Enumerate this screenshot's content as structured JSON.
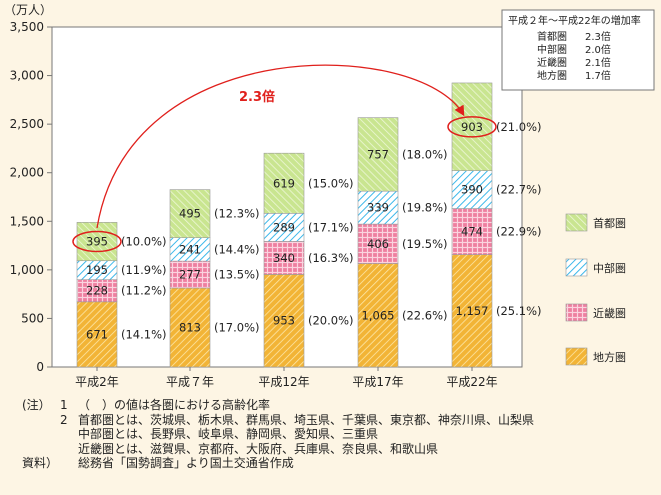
{
  "chart_data": {
    "type": "stacked-bar",
    "unit_label": "（万人）",
    "categories": [
      "平成2年",
      "平成７年",
      "平成12年",
      "平成17年",
      "平成22年"
    ],
    "ylim": [
      0,
      3500
    ],
    "y_ticks": [
      0,
      500,
      1000,
      1500,
      2000,
      2500,
      3000,
      3500
    ],
    "y_tick_labels": [
      "0",
      "500",
      "1,000",
      "1,500",
      "2,000",
      "2,500",
      "3,000",
      "3,500"
    ],
    "series": [
      {
        "name": "地方圏",
        "color": "#f2b436",
        "values": [
          671,
          813,
          953,
          1065,
          1157
        ],
        "labels": [
          "671",
          "813",
          "953",
          "1,065",
          "1,157"
        ],
        "pct": [
          "(14.1%)",
          "(17.0%)",
          "(20.0%)",
          "(22.6%)",
          "(25.1%)"
        ]
      },
      {
        "name": "近畿圏",
        "color": "#ee7fa0",
        "values": [
          228,
          277,
          340,
          406,
          474
        ],
        "labels": [
          "228",
          "277",
          "340",
          "406",
          "474"
        ],
        "pct": [
          "(11.2%)",
          "(13.5%)",
          "(16.3%)",
          "(19.5%)",
          "(22.9%)"
        ]
      },
      {
        "name": "中部圏",
        "color": "#6ccdf0",
        "values": [
          195,
          241,
          289,
          339,
          390
        ],
        "labels": [
          "195",
          "241",
          "289",
          "339",
          "390"
        ],
        "pct": [
          "(11.9%)",
          "(14.4%)",
          "(17.1%)",
          "(19.8%)",
          "(22.7%)"
        ]
      },
      {
        "name": "首都圏",
        "color": "#b8dc7a",
        "values": [
          395,
          495,
          619,
          757,
          903
        ],
        "labels": [
          "395",
          "495",
          "619",
          "757",
          "903"
        ],
        "pct": [
          "(10.0%)",
          "(12.3%)",
          "(15.0%)",
          "(18.0%)",
          "(21.0%)"
        ]
      }
    ],
    "legend_order": [
      "首都圏",
      "中部圏",
      "近畿圏",
      "地方圏"
    ],
    "annotation": "2.3倍",
    "highlight_color": "#e0201c",
    "grid": false
  },
  "info_box": {
    "title": "平成２年～平成22年の増加率",
    "rows": [
      {
        "name": "首都圏",
        "value": "2.3倍"
      },
      {
        "name": "中部圏",
        "value": "2.0倍"
      },
      {
        "name": "近畿圏",
        "value": "2.1倍"
      },
      {
        "name": "地方圏",
        "value": "1.7倍"
      }
    ]
  },
  "notes": {
    "head": "(注）",
    "n1": "1",
    "n1_text": "（　）の値は各圏における高齢化率",
    "n2": "2",
    "n2_line1": "首都圏とは、茨城県、栃木県、群馬県、埼玉県、千葉県、東京都、神奈川県、山梨県",
    "n2_line2": "中部圏とは、長野県、岐阜県、静岡県、愛知県、三重県",
    "n2_line3": "近畿圏とは、滋賀県、京都府、大阪府、兵庫県、奈良県、和歌山県",
    "source_head": "資料）",
    "source_text": "総務省「国勢調査」より国土交通省作成"
  }
}
